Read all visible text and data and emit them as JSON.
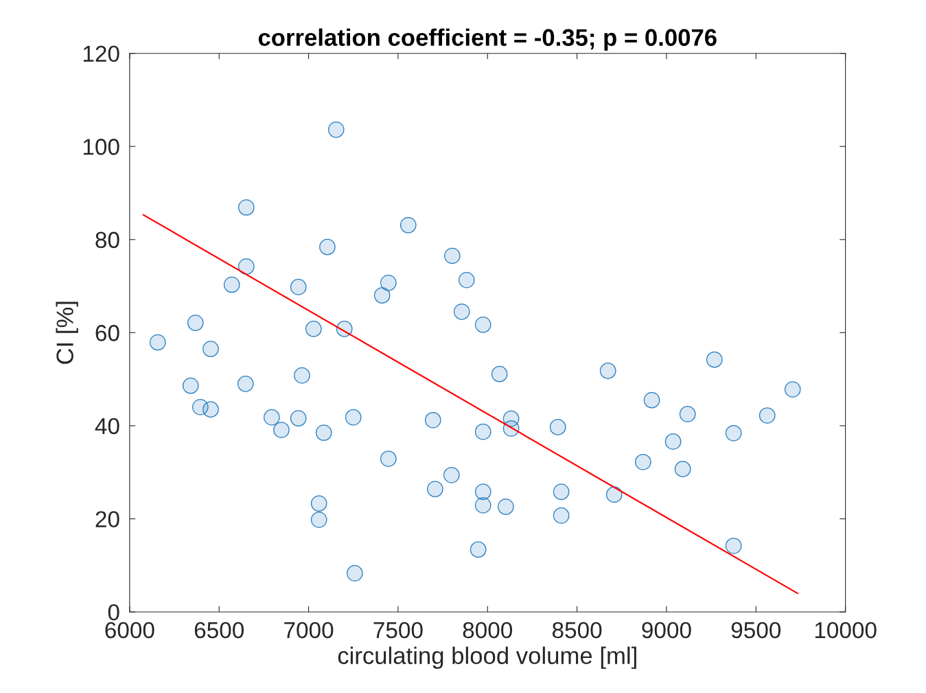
{
  "chart_data": {
    "type": "scatter",
    "title": "correlation coefficient = -0.35; p = 0.0076",
    "xlabel": "circulating blood volume [ml]",
    "ylabel": "CI [%]",
    "xlim": [
      6000,
      10000
    ],
    "xticks": [
      6000,
      6500,
      7000,
      7500,
      8000,
      8500,
      9000,
      9500,
      10000
    ],
    "ylim": [
      0,
      120
    ],
    "yticks": [
      0,
      20,
      40,
      60,
      80,
      100,
      120
    ],
    "grid": false,
    "marker": "circle",
    "series": [
      {
        "color": "#2a7fc1",
        "x": [
          6157,
          6341,
          6368,
          6395,
          6453,
          6453,
          6571,
          6648,
          6652,
          6652,
          6794,
          6848,
          6943,
          6943,
          6963,
          7028,
          7058,
          7058,
          7085,
          7105,
          7154,
          7200,
          7250,
          7258,
          7411,
          7446,
          7446,
          7557,
          7695,
          7707,
          7799,
          7803,
          7856,
          7883,
          7948,
          7975,
          7975,
          7975,
          7975,
          8067,
          8102,
          8132,
          8132,
          8393,
          8412,
          8412,
          8673,
          8708,
          8869,
          8918,
          9037,
          9091,
          9118,
          9268,
          9375,
          9375,
          9563,
          9705
        ],
        "values": [
          57.9,
          48.6,
          62.1,
          44.0,
          56.5,
          43.5,
          70.3,
          49.0,
          86.9,
          74.2,
          41.8,
          39.1,
          69.8,
          41.6,
          50.8,
          60.8,
          23.3,
          19.8,
          38.5,
          78.4,
          103.6,
          60.8,
          41.8,
          8.3,
          68.0,
          70.7,
          32.9,
          83.1,
          41.2,
          26.4,
          29.4,
          76.5,
          64.5,
          71.3,
          13.4,
          61.7,
          38.7,
          25.8,
          22.9,
          51.1,
          22.6,
          41.5,
          39.4,
          39.7,
          25.8,
          20.7,
          51.8,
          25.2,
          32.2,
          45.5,
          36.6,
          30.7,
          42.5,
          54.2,
          38.4,
          14.2,
          42.2,
          47.8
        ]
      },
      {
        "type": "line",
        "color": "#ff0000",
        "line_style": "solid",
        "marker": "none",
        "x": [
          6077,
          9732
        ],
        "values": [
          85.3,
          4.0
        ]
      }
    ]
  }
}
